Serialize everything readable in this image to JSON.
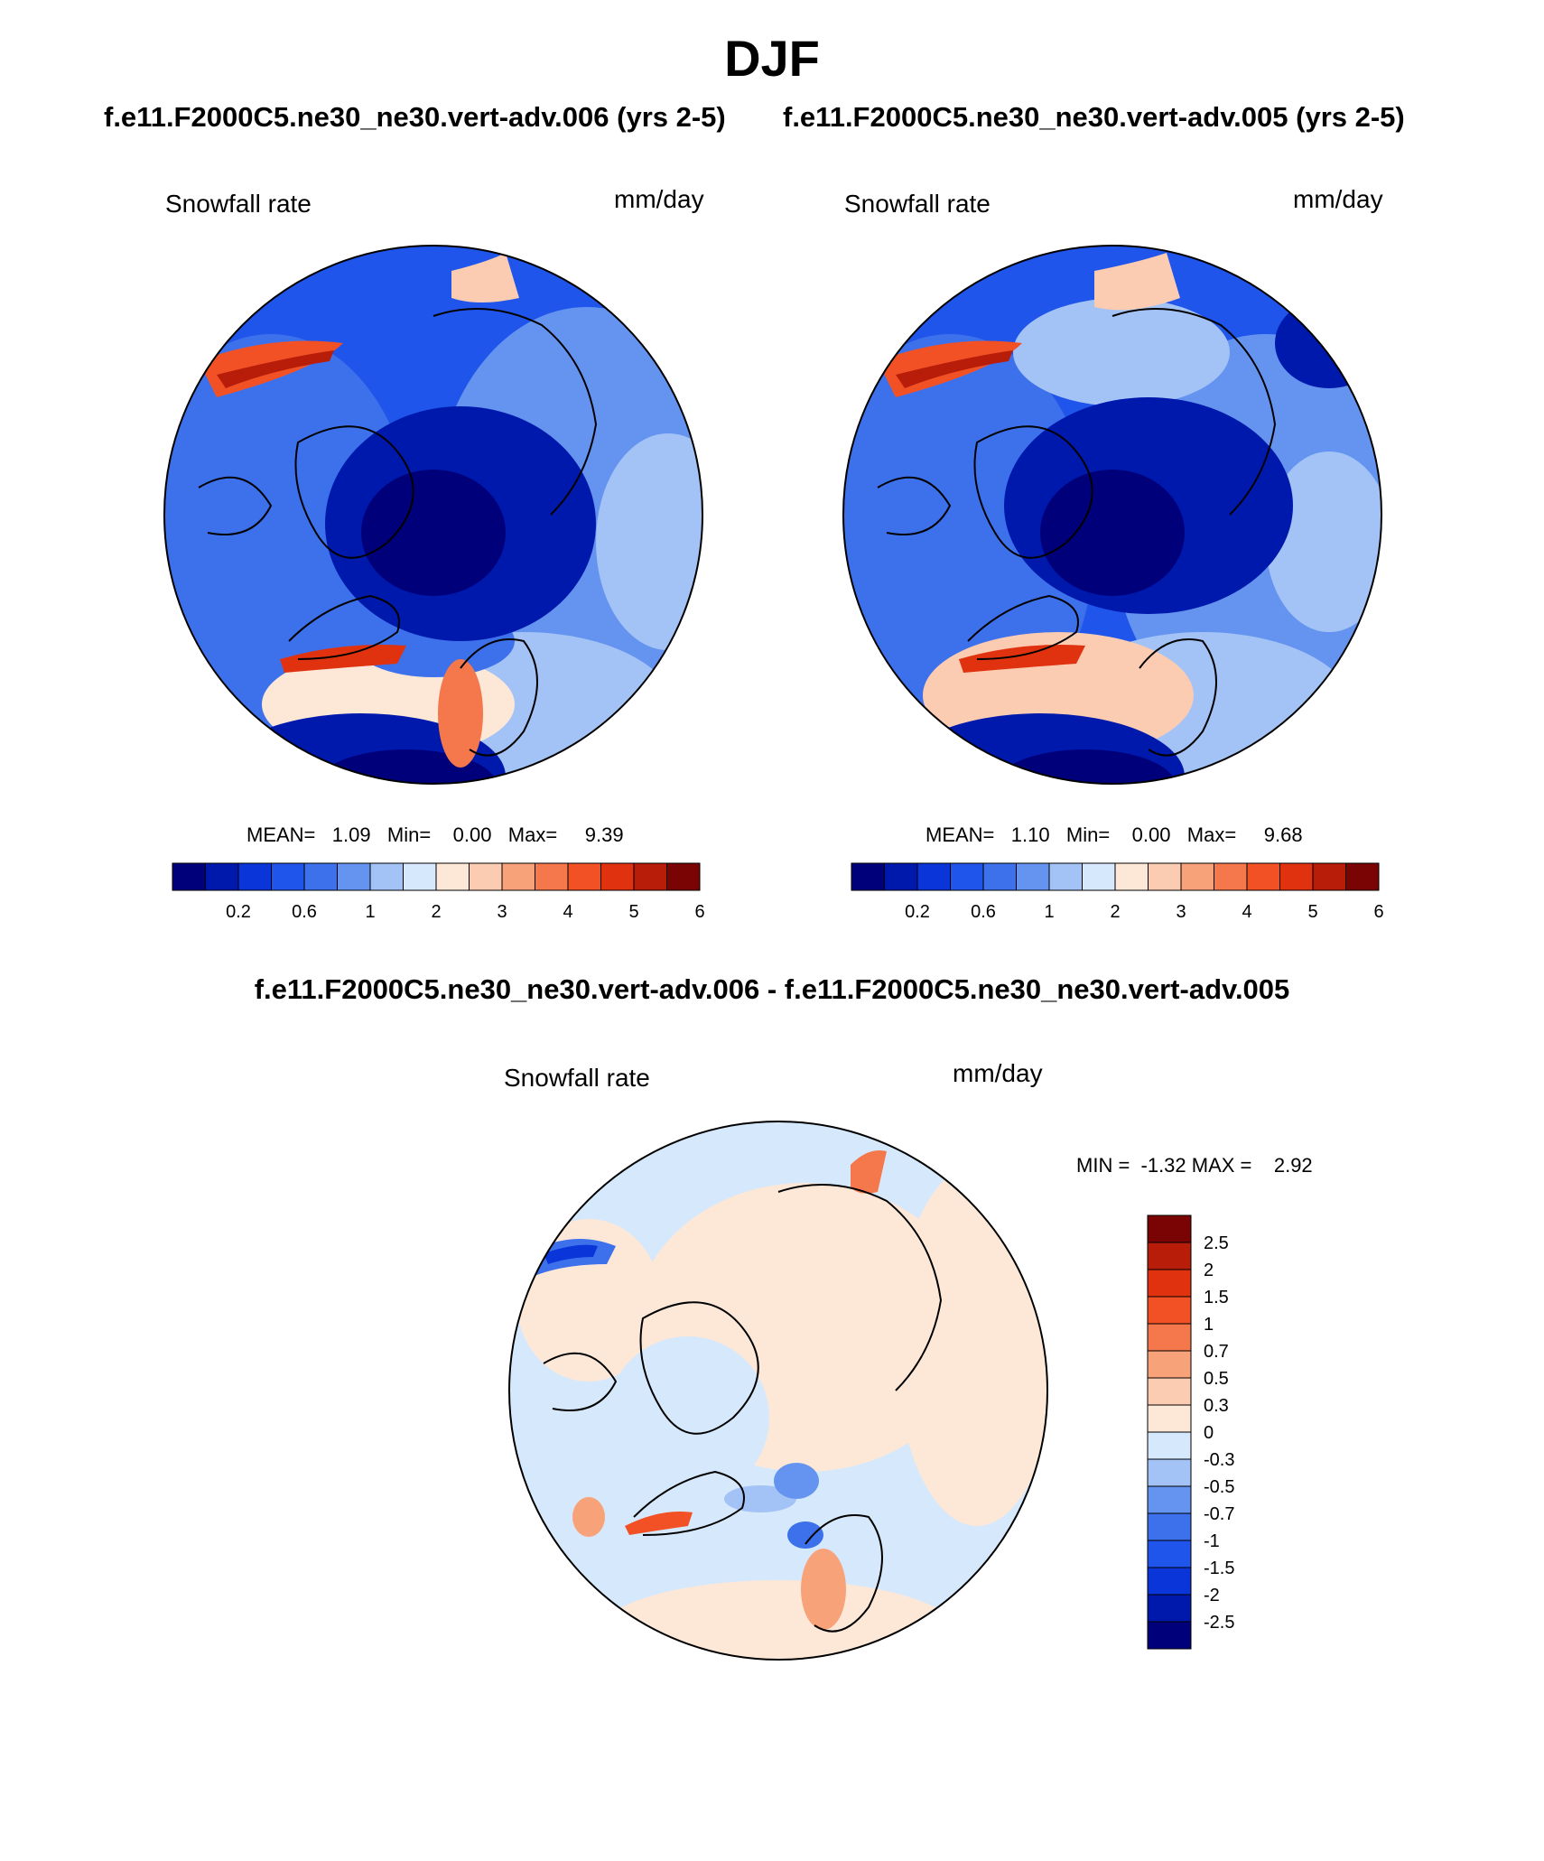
{
  "season": "DJF",
  "panels": [
    {
      "case_title": "f.e11.F2000C5.ne30_ne30.vert-adv.006 (yrs 2-5)",
      "variable": "Snowfall rate",
      "units": "mm/day",
      "stats": "MEAN=   1.09   Min=    0.00   Max=     9.39"
    },
    {
      "case_title": "f.e11.F2000C5.ne30_ne30.vert-adv.005 (yrs 2-5)",
      "variable": "Snowfall rate",
      "units": "mm/day",
      "stats": "MEAN=   1.10   Min=    0.00   Max=     9.68"
    }
  ],
  "diff": {
    "title": "f.e11.F2000C5.ne30_ne30.vert-adv.006 - f.e11.F2000C5.ne30_ne30.vert-adv.005",
    "variable": "Snowfall rate",
    "units": "mm/day",
    "stats": "MIN =  -1.32 MAX =    2.92"
  },
  "colorbar_levels": [
    "0.2",
    "0.6",
    "1",
    "2",
    "3",
    "4",
    "5",
    "6"
  ],
  "colorbar_colors": [
    "#00007a",
    "#0019ad",
    "#0a35d9",
    "#1f55ea",
    "#3d71ec",
    "#6494f0",
    "#a3c2f6",
    "#d6e8fb",
    "#fde8d8",
    "#fbcbb2",
    "#f8a27a",
    "#f5774c",
    "#f25125",
    "#e13210",
    "#b81d0a",
    "#7a0403"
  ],
  "diff_colorbar_levels": [
    "2.5",
    "2",
    "1.5",
    "1",
    "0.7",
    "0.5",
    "0.3",
    "0",
    "-0.3",
    "-0.5",
    "-0.7",
    "-1",
    "-1.5",
    "-2",
    "-2.5"
  ],
  "diff_colorbar_colors": [
    "#7a0403",
    "#b81d0a",
    "#e13210",
    "#f25125",
    "#f5774c",
    "#f8a27a",
    "#fbcbb2",
    "#fde8d8",
    "#d6e8fb",
    "#a3c2f6",
    "#6494f0",
    "#3d71ec",
    "#1f55ea",
    "#0a35d9",
    "#0019ad",
    "#00007a"
  ]
}
